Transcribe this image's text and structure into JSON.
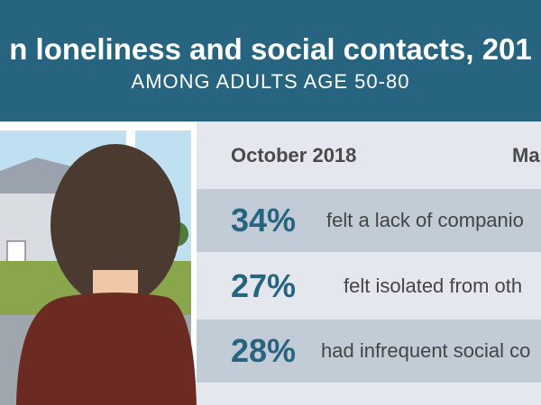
{
  "header": {
    "title": "n loneliness and social contacts, 201",
    "subtitle": "AMONG ADULTS AGE 50-80"
  },
  "table": {
    "columns": [
      "October 2018",
      "Ma"
    ],
    "rows": [
      [
        "34%",
        "felt a lack of companio"
      ],
      [
        "27%",
        "felt isolated from oth"
      ],
      [
        "28%",
        "had infrequent social co"
      ]
    ]
  }
}
